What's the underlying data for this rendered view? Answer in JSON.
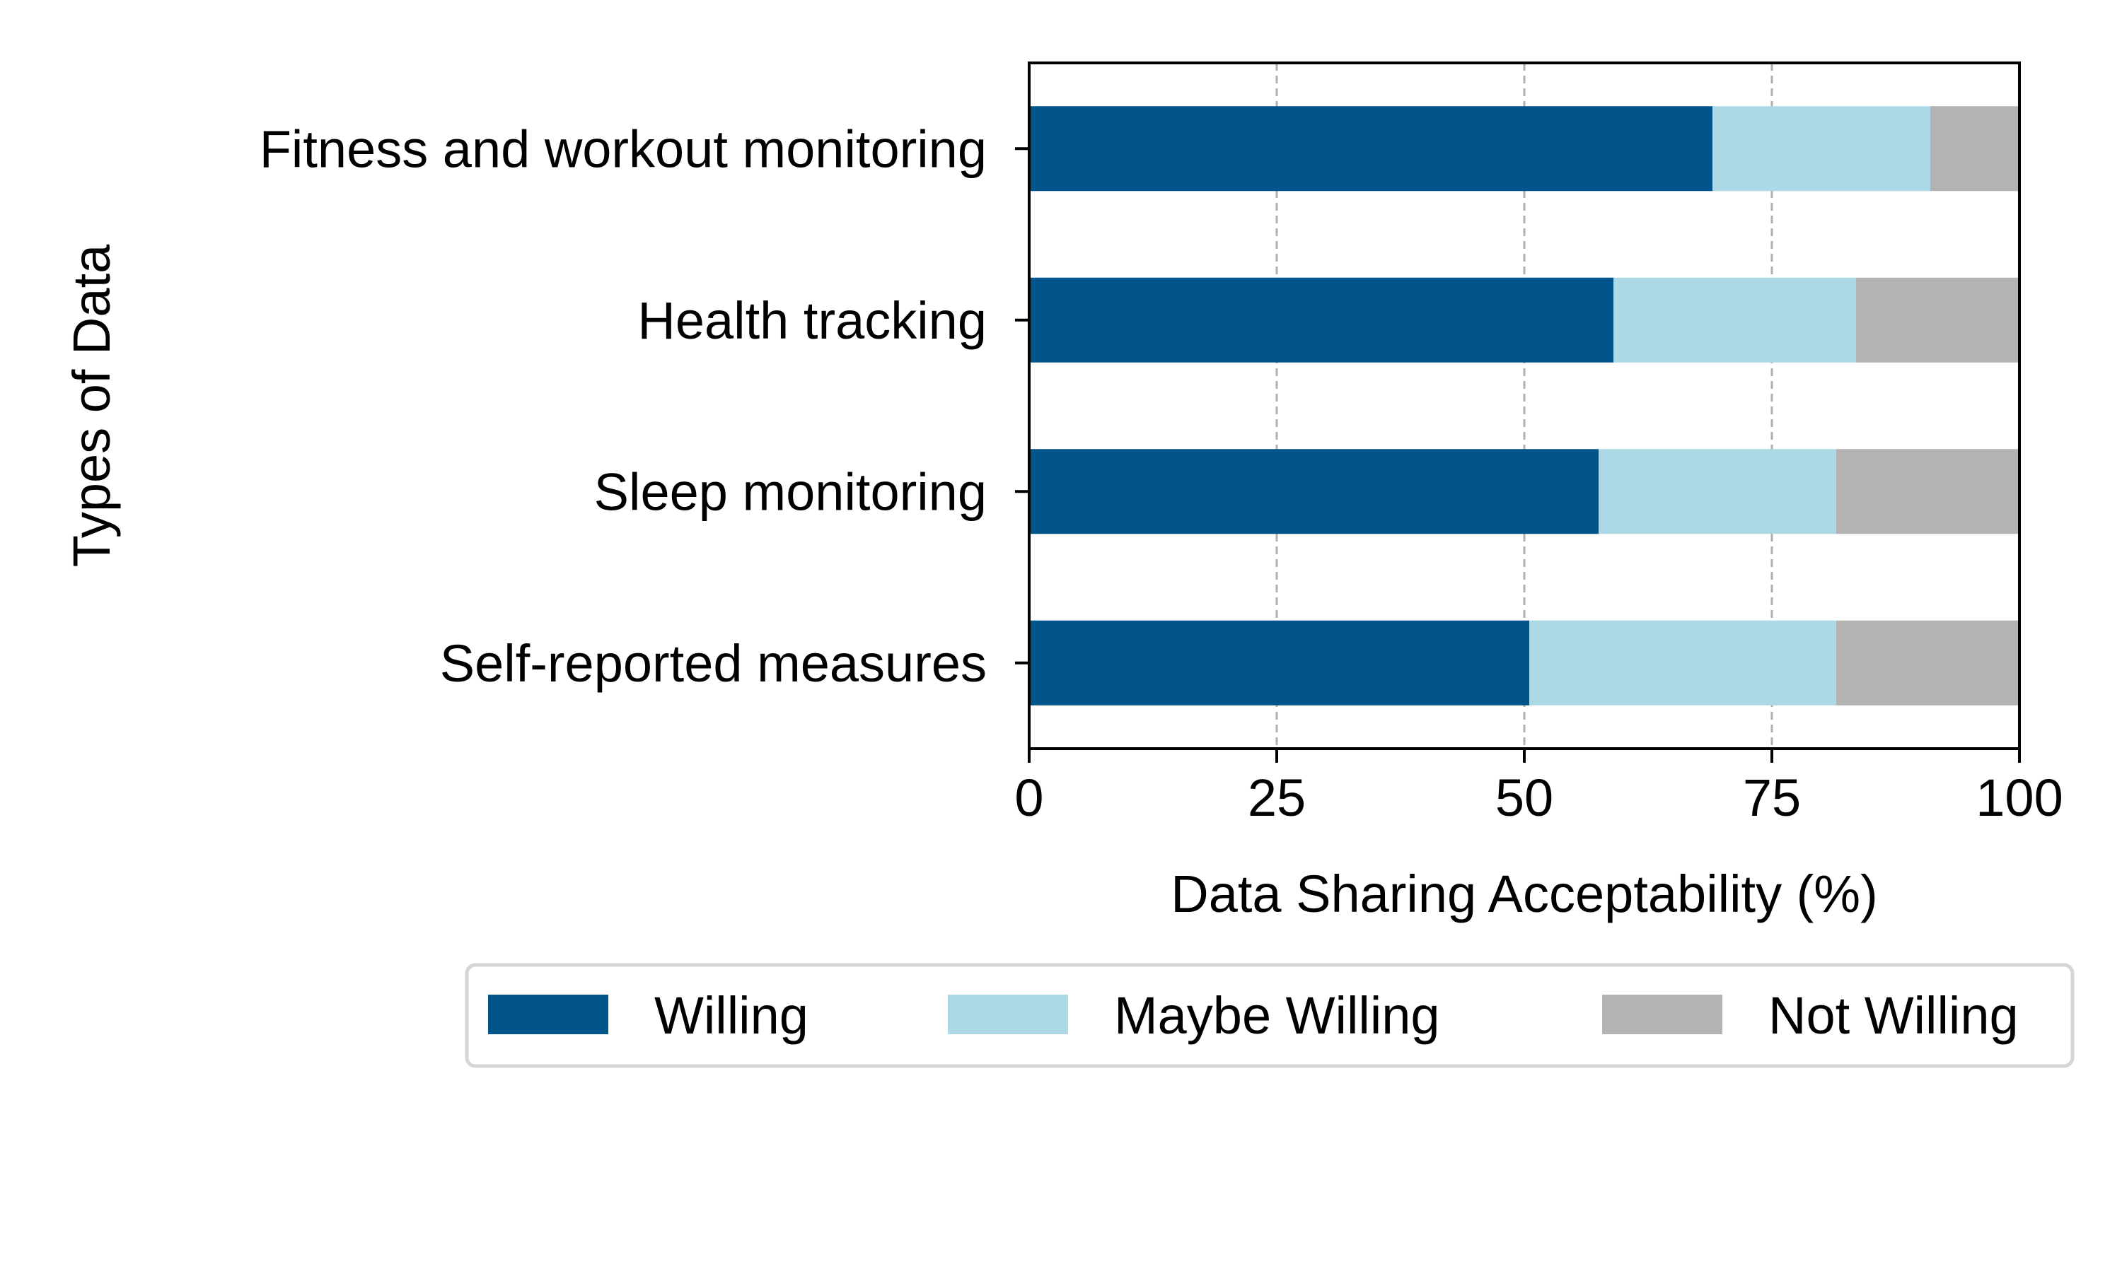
{
  "chart_data": {
    "type": "bar",
    "orientation": "horizontal",
    "stacked": true,
    "title": "",
    "xlabel": "Data Sharing Acceptability (%)",
    "ylabel": "Types of Data",
    "xlim": [
      0,
      100
    ],
    "xticks": [
      0,
      25,
      50,
      75,
      100
    ],
    "grid": "vertical dashed",
    "legend_position": "bottom",
    "categories": [
      "Fitness and workout monitoring",
      "Health tracking",
      "Sleep monitoring",
      "Self-reported measures"
    ],
    "series": [
      {
        "name": "Willing",
        "color": "#02558a",
        "values": [
          69,
          59,
          57.5,
          50.5
        ]
      },
      {
        "name": "Maybe Willing",
        "color": "#add8e6",
        "values": [
          22,
          24.5,
          24,
          31
        ]
      },
      {
        "name": "Not Willing",
        "color": "#b3b3b3",
        "values": [
          9,
          16.5,
          18.5,
          18.5
        ]
      }
    ]
  }
}
